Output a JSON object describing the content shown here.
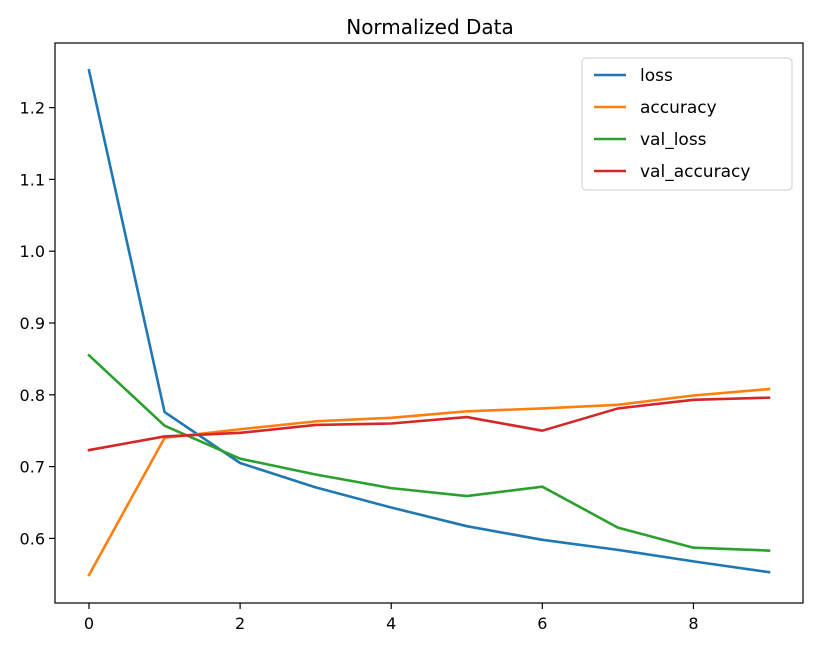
{
  "chart_data": {
    "type": "line",
    "title": "Normalized Data",
    "xlabel": "",
    "ylabel": "",
    "x": [
      0,
      1,
      2,
      3,
      4,
      5,
      6,
      7,
      8,
      9
    ],
    "xlim": [
      -0.45,
      9.45
    ],
    "ylim": [
      0.51,
      1.29
    ],
    "xticks": [
      0,
      2,
      4,
      6,
      8
    ],
    "yticks": [
      0.6,
      0.7,
      0.8,
      0.9,
      1.0,
      1.1,
      1.2
    ],
    "ytick_labels": [
      "0.6",
      "0.7",
      "0.8",
      "0.9",
      "1.0",
      "1.1",
      "1.2"
    ],
    "grid": false,
    "legend_position": "top-right",
    "series": [
      {
        "name": "loss",
        "color": "#1f77b4",
        "values": [
          1.252,
          0.776,
          0.705,
          0.671,
          0.643,
          0.617,
          0.598,
          0.584,
          0.568,
          0.553
        ]
      },
      {
        "name": "accuracy",
        "color": "#ff7f0e",
        "values": [
          0.549,
          0.74,
          0.752,
          0.763,
          0.768,
          0.777,
          0.781,
          0.786,
          0.799,
          0.808
        ]
      },
      {
        "name": "val_loss",
        "color": "#2ca02c",
        "values": [
          0.855,
          0.757,
          0.711,
          0.689,
          0.67,
          0.659,
          0.672,
          0.615,
          0.587,
          0.583
        ]
      },
      {
        "name": "val_accuracy",
        "color": "#d62728",
        "values": [
          0.723,
          0.742,
          0.747,
          0.758,
          0.76,
          0.769,
          0.75,
          0.781,
          0.793,
          0.796
        ]
      }
    ]
  }
}
